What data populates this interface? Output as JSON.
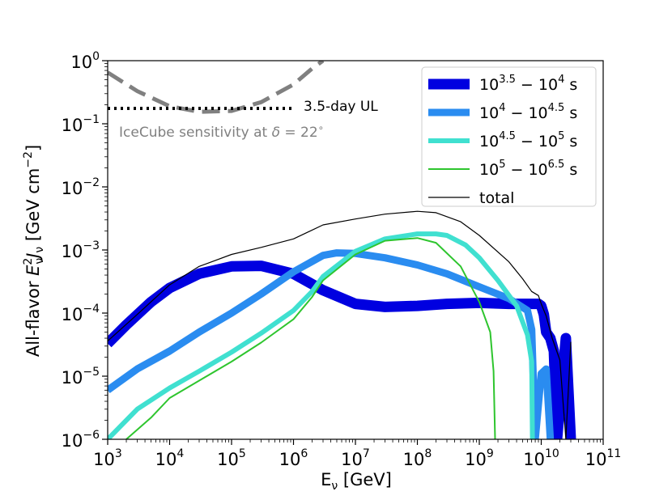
{
  "chart_data": {
    "type": "line",
    "x_scale": "log",
    "y_scale": "log",
    "xlim": [
      1000,
      100000000000
    ],
    "ylim": [
      1e-06,
      1
    ],
    "xlabel": "E_ν [GeV]",
    "ylabel": "All-flavor E_ν^2 J_ν [GeV cm^-2]",
    "x_ticks": [
      {
        "base": "10",
        "exp": "3",
        "value": 1000
      },
      {
        "base": "10",
        "exp": "4",
        "value": 10000
      },
      {
        "base": "10",
        "exp": "5",
        "value": 100000
      },
      {
        "base": "10",
        "exp": "6",
        "value": 1000000
      },
      {
        "base": "10",
        "exp": "7",
        "value": 10000000
      },
      {
        "base": "10",
        "exp": "8",
        "value": 100000000
      },
      {
        "base": "10",
        "exp": "9",
        "value": 1000000000
      },
      {
        "base": "10",
        "exp": "10",
        "value": 10000000000
      },
      {
        "base": "10",
        "exp": "11",
        "value": 100000000000
      }
    ],
    "y_ticks": [
      {
        "base": "10",
        "exp": "−6",
        "value": 1e-06
      },
      {
        "base": "10",
        "exp": "−5",
        "value": 1e-05
      },
      {
        "base": "10",
        "exp": "−4",
        "value": 0.0001
      },
      {
        "base": "10",
        "exp": "−3",
        "value": 0.001
      },
      {
        "base": "10",
        "exp": "−2",
        "value": 0.01
      },
      {
        "base": "10",
        "exp": "−1",
        "value": 0.1
      },
      {
        "base": "10",
        "exp": "0",
        "value": 1
      }
    ],
    "legend_position": "top-right",
    "series": [
      {
        "name": "10^3.5 − 10^4 s",
        "legend": {
          "a": "10",
          "ae": "3.5",
          "mid": " − ",
          "b": "10",
          "be": "4",
          "unit": " s"
        },
        "color": "#0000e0",
        "x": [
          1000,
          2000,
          5000,
          10000,
          30000,
          100000,
          300000,
          1000000,
          3000000,
          10000000,
          30000000,
          100000000,
          300000000,
          1000000000,
          3000000000,
          7000000000,
          9000000000,
          10000000000,
          11000000000,
          12000000000,
          14000000000,
          16000000000,
          18000000000,
          25000000000,
          30000000000
        ],
        "y": [
          3.3e-05,
          6.5e-05,
          0.00015,
          0.00025,
          0.00042,
          0.00055,
          0.00056,
          0.00042,
          0.00023,
          0.00014,
          0.000125,
          0.00013,
          0.00014,
          0.000145,
          0.00014,
          0.00014,
          0.00014,
          0.00013,
          9.5e-05,
          5e-05,
          4e-05,
          2.5e-05,
          1e-06,
          4e-05,
          1e-06
        ]
      },
      {
        "name": "10^4 − 10^4.5 s",
        "legend": {
          "a": "10",
          "ae": "4",
          "mid": " − ",
          "b": "10",
          "be": "4.5",
          "unit": " s"
        },
        "color": "#2a8cf0",
        "x": [
          1000,
          3000,
          10000,
          30000,
          100000,
          300000,
          1000000,
          3000000,
          5000000,
          10000000,
          30000000,
          100000000,
          300000000,
          1000000000,
          3000000000,
          6000000000,
          7000000000,
          8000000000,
          10000000000,
          12000000000,
          14000000000
        ],
        "y": [
          6e-06,
          1.3e-05,
          2.5e-05,
          5e-05,
          0.0001,
          0.0002,
          0.00045,
          0.00082,
          0.0009,
          0.00088,
          0.00075,
          0.00058,
          0.00042,
          0.00026,
          0.00017,
          0.00011,
          5.5e-05,
          1e-06,
          1.1e-05,
          1.3e-05,
          1e-06
        ]
      },
      {
        "name": "10^4.5 − 10^5 s",
        "legend": {
          "a": "10",
          "ae": "4.5",
          "mid": " − ",
          "b": "10",
          "be": "5",
          "unit": " s"
        },
        "color": "#40e0d0",
        "x": [
          1000,
          3000,
          10000,
          30000,
          100000,
          300000,
          1000000,
          2000000,
          3000000,
          10000000,
          30000000,
          100000000,
          200000000,
          300000000,
          600000000,
          1000000000,
          2000000000,
          4000000000,
          6000000000,
          7000000000,
          7200000000
        ],
        "y": [
          1e-06,
          3e-06,
          6.5e-06,
          1.2e-05,
          2.4e-05,
          4.8e-05,
          0.00011,
          0.00022,
          0.00038,
          0.00095,
          0.0015,
          0.0018,
          0.0018,
          0.0017,
          0.0012,
          0.00075,
          0.00033,
          0.00013,
          4.5e-05,
          1.7e-05,
          1e-06
        ]
      },
      {
        "name": "10^5 − 10^6.5 s",
        "legend": {
          "a": "10",
          "ae": "5",
          "mid": " − ",
          "b": "10",
          "be": "6.5",
          "unit": " s"
        },
        "color": "#2ec52e",
        "x": [
          2000,
          5000,
          10000,
          30000,
          100000,
          300000,
          1000000,
          2000000,
          3000000,
          10000000,
          30000000,
          100000000,
          200000000,
          500000000,
          1000000000,
          1500000000,
          1700000000,
          1800000000
        ],
        "y": [
          1e-06,
          2.2e-06,
          4.5e-06,
          8.5e-06,
          1.7e-05,
          3.4e-05,
          8e-05,
          0.00018,
          0.00033,
          0.00085,
          0.0014,
          0.00155,
          0.0013,
          0.00055,
          0.00015,
          5e-05,
          1.2e-05,
          1e-06
        ]
      },
      {
        "name": "total",
        "legend": {
          "a": "total",
          "ae": "",
          "mid": "",
          "b": "",
          "be": "",
          "unit": ""
        },
        "color": "#000000",
        "x": [
          1000,
          3000,
          10000,
          30000,
          100000,
          300000,
          1000000,
          3000000,
          10000000,
          30000000,
          100000000,
          200000000,
          500000000,
          1000000000,
          3000000000,
          5000000000,
          7000000000,
          9000000000,
          10000000000,
          12000000000,
          15000000000,
          20000000000,
          25000000000,
          30000000000
        ],
        "y": [
          3.6e-05,
          9.5e-05,
          0.00028,
          0.00055,
          0.00085,
          0.0011,
          0.0015,
          0.0025,
          0.0031,
          0.0037,
          0.0041,
          0.0039,
          0.0028,
          0.0017,
          0.00065,
          0.00035,
          0.00022,
          0.00019,
          0.00014,
          9e-05,
          4e-05,
          1.8e-05,
          1e-06,
          3.5e-05
        ]
      }
    ],
    "reference_curves": [
      {
        "name": "IceCube sensitivity at δ=22°",
        "label": "IceCube sensitivity at δ = 22°",
        "style": "dashed",
        "color": "#808080",
        "x": [
          1000,
          3000,
          10000,
          30000,
          100000,
          300000,
          1000000,
          2000000,
          3000000
        ],
        "y": [
          0.65,
          0.33,
          0.19,
          0.155,
          0.16,
          0.22,
          0.42,
          0.75,
          1.0
        ]
      },
      {
        "name": "3.5-day UL",
        "label": "3.5-day UL",
        "style": "dotted",
        "color": "#000000",
        "x": [
          1000,
          1000000
        ],
        "y": [
          0.175,
          0.175
        ]
      }
    ]
  }
}
